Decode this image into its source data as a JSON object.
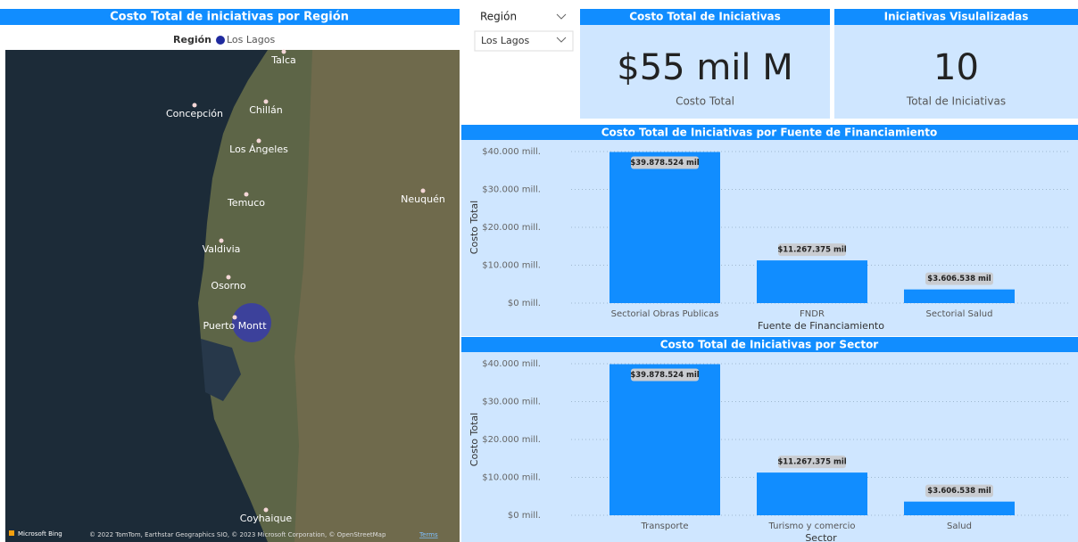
{
  "map_panel": {
    "title": "Costo Total de iniciativas por Región",
    "legend_title": "Región",
    "legend_item": "Los Lagos",
    "places": [
      "Talca",
      "Concepción",
      "Chillán",
      "Los Ángeles",
      "Temuco",
      "Neuquén",
      "Valdivia",
      "Osorno",
      "Puerto Montt",
      "Coyhaique"
    ],
    "attribution": "© 2022 TomTom, Earthstar Geographics SIO, © 2023 Microsoft Corporation, © OpenStreetMap",
    "terms": "Terms",
    "brand": "Microsoft Bing"
  },
  "slicer": {
    "label": "Región",
    "selected": "Los Lagos"
  },
  "cards": [
    {
      "title": "Costo Total de Iniciativas",
      "value": "$55 mil M",
      "caption": "Costo Total"
    },
    {
      "title": "Iniciativas Visulalizadas",
      "value": "10",
      "caption": "Total de Iniciativas"
    }
  ],
  "chart_data": [
    {
      "type": "bar",
      "title": "Costo Total de Iniciativas por Fuente de Financiamiento",
      "x_label": "Fuente de Financiamiento",
      "y_label": "Costo Total",
      "categories": [
        "Sectorial Obras Publicas",
        "FNDR",
        "Sectorial Salud"
      ],
      "values": [
        39878.524,
        11267.375,
        3606.538
      ],
      "value_labels": [
        "$39.878.524 mil",
        "$11.267.375 mil",
        "$3.606.538 mil"
      ],
      "color": "#118dff",
      "ylim": [
        0,
        40000
      ],
      "yticks": [
        {
          "value": 0,
          "label": "$0 mill."
        },
        {
          "value": 10000,
          "label": "$10.000 mill."
        },
        {
          "value": 20000,
          "label": "$20.000 mill."
        },
        {
          "value": 30000,
          "label": "$30.000 mill."
        },
        {
          "value": 40000,
          "label": "$40.000 mill."
        }
      ],
      "grid": true
    },
    {
      "type": "bar",
      "title": "Costo Total de Iniciativas por Sector",
      "x_label": "Sector",
      "y_label": "Costo Total",
      "categories": [
        "Transporte",
        "Turismo y comercio",
        "Salud"
      ],
      "values": [
        39878.524,
        11267.375,
        3606.538
      ],
      "value_labels": [
        "$39.878.524 mil",
        "$11.267.375 mil",
        "$3.606.538 mil"
      ],
      "color": "#118dff",
      "ylim": [
        0,
        40000
      ],
      "yticks": [
        {
          "value": 0,
          "label": "$0 mill."
        },
        {
          "value": 10000,
          "label": "$10.000 mill."
        },
        {
          "value": 20000,
          "label": "$20.000 mill."
        },
        {
          "value": 30000,
          "label": "$30.000 mill."
        },
        {
          "value": 40000,
          "label": "$40.000 mill."
        }
      ],
      "grid": true
    }
  ]
}
